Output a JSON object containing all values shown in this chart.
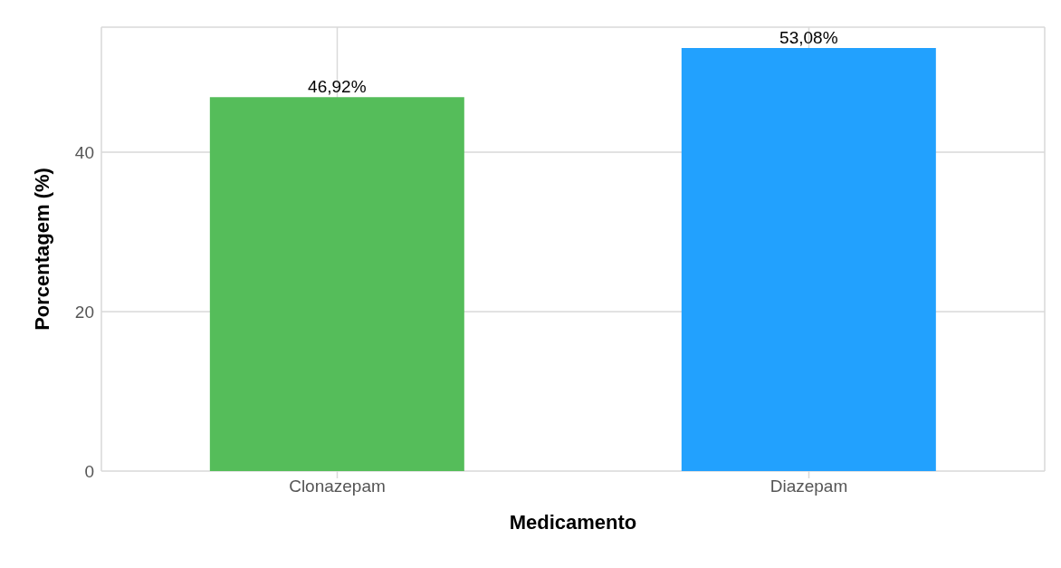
{
  "chart_data": {
    "type": "bar",
    "xlabel": "Medicamento",
    "ylabel": "Porcentagem (%)",
    "categories": [
      "Clonazepam",
      "Diazepam"
    ],
    "values": [
      46.92,
      53.08
    ],
    "colors": [
      "#55bd5a",
      "#22a1fe"
    ],
    "value_labels": [
      "46,92%",
      "53,08%"
    ],
    "ylim": [
      0,
      55.7
    ],
    "yticks": [
      0,
      20,
      40
    ],
    "grid": true
  }
}
